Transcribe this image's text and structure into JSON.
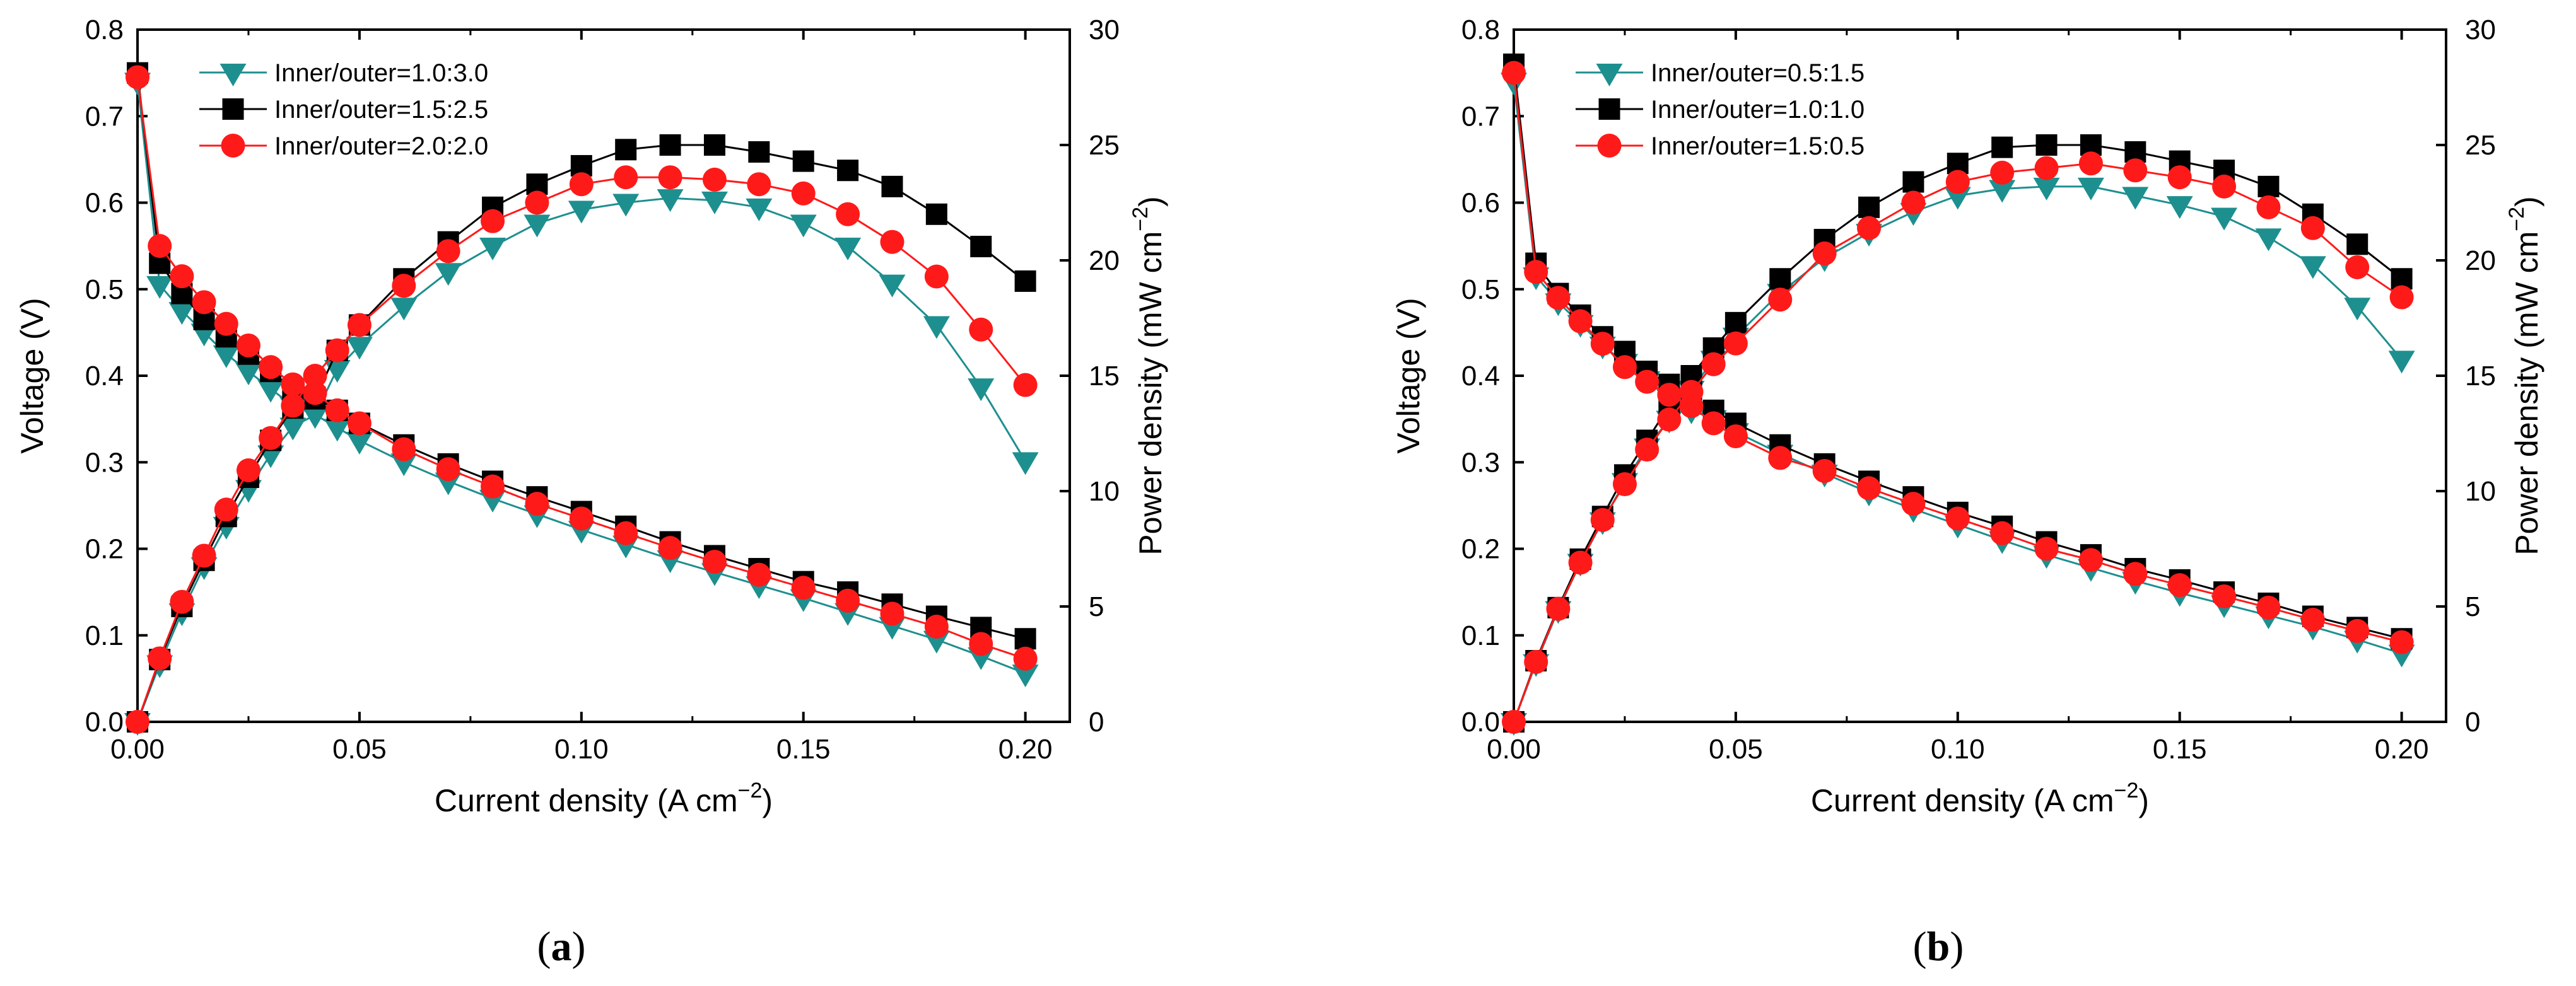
{
  "figure": {
    "panel_labels": [
      {
        "open": "(",
        "letter": "a",
        "close": ")"
      },
      {
        "open": "(",
        "letter": "b",
        "close": ")"
      }
    ]
  },
  "chart_data": [
    {
      "id": "a",
      "type": "line",
      "xlabel": "Current density (A cm",
      "xlabel_sup": "−2",
      "xlabel_close": ")",
      "ylabel_left": "Voltage (V)",
      "ylabel_right": "Power density (mW cm",
      "ylabel_right_sup": "−2",
      "ylabel_right_close": ")",
      "xlim": [
        0,
        0.21
      ],
      "ylim_left": [
        0,
        0.8
      ],
      "ylim_right": [
        0,
        30
      ],
      "xticks": [
        0,
        0.05,
        0.1,
        0.15,
        0.2
      ],
      "xtick_labels": [
        "0.00",
        "0.05",
        "0.10",
        "0.15",
        "0.20"
      ],
      "yticks_left": [
        0,
        0.1,
        0.2,
        0.3,
        0.4,
        0.5,
        0.6,
        0.7,
        0.8
      ],
      "ytick_labels_left": [
        "0.0",
        "0.1",
        "0.2",
        "0.3",
        "0.4",
        "0.5",
        "0.6",
        "0.7",
        "0.8"
      ],
      "yticks_right": [
        0,
        5,
        10,
        15,
        20,
        25,
        30
      ],
      "ytick_labels_right": [
        "0",
        "5",
        "10",
        "15",
        "20",
        "25",
        "30"
      ],
      "grid": false,
      "legend_position": "top-left",
      "x": [
        0,
        0.005,
        0.01,
        0.015,
        0.02,
        0.025,
        0.03,
        0.035,
        0.04,
        0.045,
        0.05,
        0.06,
        0.07,
        0.08,
        0.09,
        0.1,
        0.11,
        0.12,
        0.13,
        0.14,
        0.15,
        0.16,
        0.17,
        0.18,
        0.19,
        0.2
      ],
      "series": [
        {
          "name": "Inner/outer=1.0:3.0",
          "color": "#1e8f8f",
          "marker": "triangle-down",
          "voltage": [
            0.74,
            0.505,
            0.475,
            0.45,
            0.425,
            0.405,
            0.385,
            0.365,
            0.355,
            0.34,
            0.325,
            0.3,
            0.278,
            0.258,
            0.24,
            0.222,
            0.205,
            0.188,
            0.173,
            0.158,
            0.143,
            0.127,
            0.111,
            0.095,
            0.076,
            0.056
          ],
          "power": [
            0,
            2.5,
            4.75,
            6.75,
            8.5,
            10.1,
            11.6,
            12.8,
            13.3,
            15.3,
            16.3,
            18.0,
            19.5,
            20.6,
            21.6,
            22.2,
            22.5,
            22.7,
            22.6,
            22.3,
            21.6,
            20.6,
            19.0,
            17.2,
            14.5,
            11.3
          ]
        },
        {
          "name": "Inner/outer=1.5:2.5",
          "color": "#000000",
          "marker": "square",
          "voltage": [
            0.75,
            0.53,
            0.495,
            0.465,
            0.445,
            0.425,
            0.405,
            0.385,
            0.375,
            0.36,
            0.345,
            0.32,
            0.298,
            0.278,
            0.26,
            0.243,
            0.226,
            0.208,
            0.192,
            0.177,
            0.162,
            0.15,
            0.136,
            0.122,
            0.109,
            0.096
          ],
          "power": [
            0,
            2.7,
            5.0,
            7.0,
            8.9,
            10.6,
            12.2,
            13.6,
            14.0,
            16.1,
            17.2,
            19.2,
            20.8,
            22.3,
            23.3,
            24.1,
            24.8,
            25.0,
            25.0,
            24.7,
            24.3,
            23.9,
            23.2,
            22.0,
            20.6,
            19.1
          ]
        },
        {
          "name": "Inner/outer=2.0:2.0",
          "color": "#ff1a1a",
          "marker": "circle",
          "voltage": [
            0.745,
            0.55,
            0.515,
            0.485,
            0.46,
            0.435,
            0.41,
            0.39,
            0.38,
            0.36,
            0.345,
            0.315,
            0.292,
            0.272,
            0.252,
            0.235,
            0.218,
            0.201,
            0.185,
            0.17,
            0.155,
            0.14,
            0.125,
            0.11,
            0.09,
            0.073
          ],
          "power": [
            0,
            2.75,
            5.2,
            7.2,
            9.2,
            10.9,
            12.3,
            13.7,
            15.0,
            16.1,
            17.2,
            18.9,
            20.4,
            21.7,
            22.5,
            23.3,
            23.6,
            23.6,
            23.5,
            23.3,
            22.9,
            22.0,
            20.8,
            19.3,
            17.0,
            14.6
          ]
        }
      ]
    },
    {
      "id": "b",
      "type": "line",
      "xlabel": "Current density (A cm",
      "xlabel_sup": "−2",
      "xlabel_close": ")",
      "ylabel_left": "Voltage (V)",
      "ylabel_right": "Power density (mW cm",
      "ylabel_right_sup": "−2",
      "ylabel_right_close": ")",
      "xlim": [
        0,
        0.21
      ],
      "ylim_left": [
        0,
        0.8
      ],
      "ylim_right": [
        0,
        30
      ],
      "xticks": [
        0,
        0.05,
        0.1,
        0.15,
        0.2
      ],
      "xtick_labels": [
        "0.00",
        "0.05",
        "0.10",
        "0.15",
        "0.20"
      ],
      "yticks_left": [
        0,
        0.1,
        0.2,
        0.3,
        0.4,
        0.5,
        0.6,
        0.7,
        0.8
      ],
      "ytick_labels_left": [
        "0.0",
        "0.1",
        "0.2",
        "0.3",
        "0.4",
        "0.5",
        "0.6",
        "0.7",
        "0.8"
      ],
      "yticks_right": [
        0,
        5,
        10,
        15,
        20,
        25,
        30
      ],
      "ytick_labels_right": [
        "0",
        "5",
        "10",
        "15",
        "20",
        "25",
        "30"
      ],
      "grid": false,
      "legend_position": "top-left",
      "x": [
        0,
        0.005,
        0.01,
        0.015,
        0.02,
        0.025,
        0.03,
        0.035,
        0.04,
        0.045,
        0.05,
        0.06,
        0.07,
        0.08,
        0.09,
        0.1,
        0.11,
        0.12,
        0.13,
        0.14,
        0.15,
        0.16,
        0.17,
        0.18,
        0.19,
        0.2
      ],
      "series": [
        {
          "name": "Inner/outer=0.5:1.5",
          "color": "#1e8f8f",
          "marker": "triangle-down",
          "voltage": [
            0.74,
            0.515,
            0.485,
            0.46,
            0.435,
            0.415,
            0.395,
            0.375,
            0.36,
            0.35,
            0.335,
            0.31,
            0.287,
            0.265,
            0.246,
            0.228,
            0.21,
            0.193,
            0.178,
            0.163,
            0.149,
            0.136,
            0.123,
            0.11,
            0.095,
            0.079
          ],
          "power": [
            0,
            2.55,
            4.85,
            6.9,
            8.7,
            10.4,
            11.9,
            13.1,
            14.4,
            15.7,
            16.7,
            18.6,
            20.1,
            21.2,
            22.1,
            22.8,
            23.1,
            23.2,
            23.2,
            22.8,
            22.4,
            21.9,
            21.0,
            19.8,
            18.0,
            15.7
          ]
        },
        {
          "name": "Inner/outer=1.0:1.0",
          "color": "#000000",
          "marker": "square",
          "voltage": [
            0.76,
            0.53,
            0.495,
            0.47,
            0.445,
            0.428,
            0.405,
            0.39,
            0.375,
            0.36,
            0.345,
            0.32,
            0.298,
            0.278,
            0.26,
            0.242,
            0.226,
            0.208,
            0.193,
            0.177,
            0.164,
            0.15,
            0.137,
            0.122,
            0.109,
            0.096
          ],
          "power": [
            0,
            2.65,
            4.95,
            7.05,
            8.9,
            10.7,
            12.2,
            13.7,
            15.0,
            16.2,
            17.3,
            19.2,
            20.9,
            22.3,
            23.4,
            24.2,
            24.9,
            25.0,
            25.0,
            24.7,
            24.3,
            23.9,
            23.2,
            22.0,
            20.7,
            19.2
          ]
        },
        {
          "name": "Inner/outer=1.5:0.5",
          "color": "#ff1a1a",
          "marker": "circle",
          "voltage": [
            0.75,
            0.52,
            0.49,
            0.463,
            0.437,
            0.41,
            0.393,
            0.378,
            0.365,
            0.345,
            0.33,
            0.305,
            0.29,
            0.27,
            0.252,
            0.235,
            0.218,
            0.2,
            0.187,
            0.171,
            0.158,
            0.145,
            0.132,
            0.118,
            0.105,
            0.092
          ],
          "power": [
            0,
            2.6,
            4.9,
            6.9,
            8.75,
            10.3,
            11.8,
            13.1,
            14.3,
            15.5,
            16.4,
            18.3,
            20.3,
            21.4,
            22.5,
            23.4,
            23.8,
            24.0,
            24.2,
            23.9,
            23.6,
            23.2,
            22.3,
            21.4,
            19.7,
            18.4
          ]
        }
      ]
    }
  ]
}
